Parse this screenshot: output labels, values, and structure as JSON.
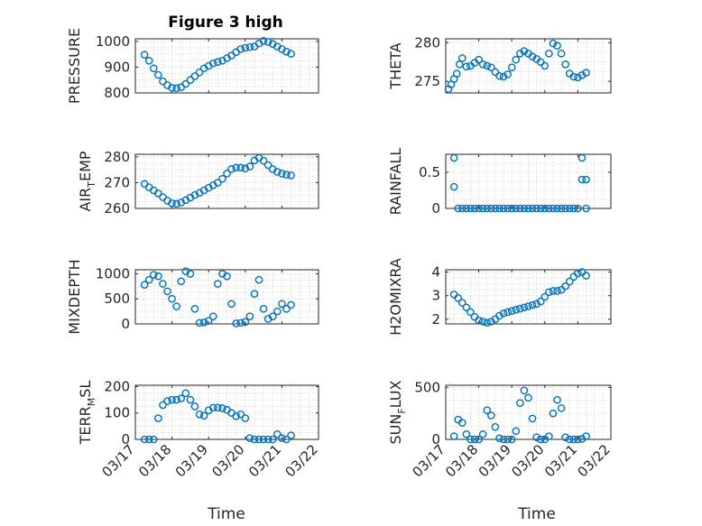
{
  "figure": {
    "xlabel": "Time",
    "x_tick_labels": [
      "03/17",
      "03/18",
      "03/19",
      "03/20",
      "03/21",
      "03/22"
    ],
    "marker_color": "#0072BD"
  },
  "chart_data": [
    {
      "id": "pressure",
      "type": "scatter",
      "title": "Figure 3 high",
      "ylabel": "PRESSURE",
      "ylim": [
        800,
        1010
      ],
      "yticks": [
        800,
        900,
        1000
      ],
      "xlim": [
        "03/17",
        "03/22"
      ],
      "grid": true,
      "x": [
        "03/17 06:00",
        "03/17 09:00",
        "03/17 12:00",
        "03/17 15:00",
        "03/17 18:00",
        "03/17 21:00",
        "03/18 00:00",
        "03/18 03:00",
        "03/18 06:00",
        "03/18 09:00",
        "03/18 12:00",
        "03/18 15:00",
        "03/18 18:00",
        "03/18 21:00",
        "03/19 00:00",
        "03/19 03:00",
        "03/19 06:00",
        "03/19 09:00",
        "03/19 12:00",
        "03/19 15:00",
        "03/19 18:00",
        "03/19 21:00",
        "03/20 00:00",
        "03/20 03:00",
        "03/20 06:00",
        "03/20 09:00",
        "03/20 12:00",
        "03/20 15:00",
        "03/20 18:00",
        "03/20 21:00",
        "03/21 00:00",
        "03/21 03:00",
        "03/21 06:00"
      ],
      "y": [
        948,
        925,
        895,
        870,
        845,
        830,
        820,
        818,
        822,
        835,
        850,
        865,
        880,
        895,
        905,
        915,
        920,
        925,
        935,
        945,
        958,
        970,
        975,
        978,
        980,
        992,
        1002,
        998,
        990,
        980,
        970,
        960,
        952
      ]
    },
    {
      "id": "theta",
      "type": "scatter",
      "ylabel": "THETA",
      "ylim": [
        273.5,
        280.5
      ],
      "yticks": [
        275,
        280
      ],
      "xlim": [
        "03/17",
        "03/22"
      ],
      "grid": true,
      "x": [
        "03/17 02:00",
        "03/17 04:00",
        "03/17 06:00",
        "03/17 08:00",
        "03/17 10:00",
        "03/17 12:00",
        "03/17 15:00",
        "03/17 18:00",
        "03/17 21:00",
        "03/18 00:00",
        "03/18 03:00",
        "03/18 06:00",
        "03/18 09:00",
        "03/18 12:00",
        "03/18 15:00",
        "03/18 18:00",
        "03/18 21:00",
        "03/19 00:00",
        "03/19 03:00",
        "03/19 06:00",
        "03/19 09:00",
        "03/19 12:00",
        "03/19 15:00",
        "03/19 18:00",
        "03/19 21:00",
        "03/20 00:00",
        "03/20 03:00",
        "03/20 06:00",
        "03/20 09:00",
        "03/20 12:00",
        "03/20 15:00",
        "03/20 18:00",
        "03/20 21:00",
        "03/21 00:00",
        "03/21 03:00",
        "03/21 06:00"
      ],
      "y": [
        274.0,
        274.6,
        275.3,
        276.0,
        277.2,
        278.0,
        276.9,
        277.0,
        277.4,
        277.8,
        277.2,
        277.0,
        276.8,
        276.2,
        275.7,
        275.6,
        275.9,
        276.8,
        277.8,
        278.6,
        278.9,
        278.6,
        278.2,
        277.9,
        277.5,
        277.0,
        278.6,
        279.9,
        279.6,
        278.6,
        277.2,
        276.0,
        275.6,
        275.5,
        275.8,
        276.1
      ]
    },
    {
      "id": "air_temp",
      "type": "scatter",
      "ylabel": "AIR_TEMP",
      "ylim": [
        260,
        281
      ],
      "yticks": [
        260,
        270,
        280
      ],
      "xlim": [
        "03/17",
        "03/22"
      ],
      "grid": true,
      "x": [
        "03/17 06:00",
        "03/17 09:00",
        "03/17 12:00",
        "03/17 15:00",
        "03/17 18:00",
        "03/17 21:00",
        "03/18 00:00",
        "03/18 03:00",
        "03/18 06:00",
        "03/18 09:00",
        "03/18 12:00",
        "03/18 15:00",
        "03/18 18:00",
        "03/18 21:00",
        "03/19 00:00",
        "03/19 03:00",
        "03/19 06:00",
        "03/19 09:00",
        "03/19 12:00",
        "03/19 15:00",
        "03/19 18:00",
        "03/19 21:00",
        "03/20 00:00",
        "03/20 03:00",
        "03/20 06:00",
        "03/20 09:00",
        "03/20 12:00",
        "03/20 15:00",
        "03/20 18:00",
        "03/20 21:00",
        "03/21 00:00",
        "03/21 03:00",
        "03/21 06:00"
      ],
      "y": [
        269.5,
        268.2,
        267.0,
        265.8,
        264.4,
        263.0,
        262.0,
        261.8,
        262.3,
        263.2,
        264.2,
        265.2,
        266.0,
        267.0,
        268.0,
        269.0,
        270.0,
        271.5,
        273.5,
        275.3,
        275.8,
        275.8,
        275.5,
        276.3,
        278.6,
        279.6,
        278.5,
        276.8,
        275.2,
        274.2,
        273.5,
        273.1,
        272.8
      ]
    },
    {
      "id": "rainfall",
      "type": "scatter",
      "ylabel": "RAINFALL",
      "ylim": [
        0,
        0.75
      ],
      "yticks": [
        0,
        0.5
      ],
      "xlim": [
        "03/17",
        "03/22"
      ],
      "grid": true,
      "x": [
        "03/17 06:00",
        "03/17 06:00",
        "03/17 09:00",
        "03/17 12:00",
        "03/17 15:00",
        "03/17 18:00",
        "03/17 21:00",
        "03/18 00:00",
        "03/18 03:00",
        "03/18 06:00",
        "03/18 09:00",
        "03/18 12:00",
        "03/18 15:00",
        "03/18 18:00",
        "03/18 21:00",
        "03/19 00:00",
        "03/19 03:00",
        "03/19 06:00",
        "03/19 09:00",
        "03/19 12:00",
        "03/19 15:00",
        "03/19 18:00",
        "03/19 21:00",
        "03/20 00:00",
        "03/20 03:00",
        "03/20 06:00",
        "03/20 09:00",
        "03/20 12:00",
        "03/20 15:00",
        "03/20 18:00",
        "03/20 21:00",
        "03/21 00:00",
        "03/21 03:00",
        "03/21 03:00",
        "03/21 06:00",
        "03/21 06:00"
      ],
      "y": [
        0.7,
        0.3,
        0,
        0,
        0,
        0,
        0,
        0,
        0,
        0,
        0,
        0,
        0,
        0,
        0,
        0,
        0,
        0,
        0,
        0,
        0,
        0,
        0,
        0,
        0,
        0,
        0,
        0,
        0,
        0,
        0,
        0,
        0.7,
        0.4,
        0.4,
        0
      ]
    },
    {
      "id": "mixdepth",
      "type": "scatter",
      "ylabel": "MIXDEPTH",
      "ylim": [
        0,
        1080
      ],
      "yticks": [
        0,
        500,
        1000
      ],
      "xlim": [
        "03/17",
        "03/22"
      ],
      "grid": true,
      "x": [
        "03/17 06:00",
        "03/17 09:00",
        "03/17 12:00",
        "03/17 15:00",
        "03/17 18:00",
        "03/17 21:00",
        "03/18 00:00",
        "03/18 03:00",
        "03/18 06:00",
        "03/18 09:00",
        "03/18 12:00",
        "03/18 15:00",
        "03/18 18:00",
        "03/18 21:00",
        "03/19 00:00",
        "03/19 03:00",
        "03/19 06:00",
        "03/19 09:00",
        "03/19 12:00",
        "03/19 15:00",
        "03/19 18:00",
        "03/19 21:00",
        "03/20 00:00",
        "03/20 03:00",
        "03/20 06:00",
        "03/20 09:00",
        "03/20 12:00",
        "03/20 15:00",
        "03/20 18:00",
        "03/20 21:00",
        "03/21 00:00",
        "03/21 03:00",
        "03/21 06:00"
      ],
      "y": [
        780,
        880,
        980,
        950,
        800,
        650,
        500,
        350,
        850,
        1050,
        1000,
        300,
        20,
        30,
        60,
        150,
        800,
        1000,
        950,
        400,
        10,
        20,
        40,
        150,
        600,
        880,
        300,
        100,
        150,
        250,
        400,
        300,
        380
      ]
    },
    {
      "id": "h2omixra",
      "type": "scatter",
      "ylabel": "H2OMIXRA",
      "ylim": [
        1.8,
        4.1
      ],
      "yticks": [
        2,
        3,
        4
      ],
      "xlim": [
        "03/17",
        "03/22"
      ],
      "grid": true,
      "x": [
        "03/17 06:00",
        "03/17 09:00",
        "03/17 12:00",
        "03/17 15:00",
        "03/17 18:00",
        "03/17 21:00",
        "03/18 00:00",
        "03/18 03:00",
        "03/18 06:00",
        "03/18 09:00",
        "03/18 12:00",
        "03/18 15:00",
        "03/18 18:00",
        "03/18 21:00",
        "03/19 00:00",
        "03/19 03:00",
        "03/19 06:00",
        "03/19 09:00",
        "03/19 12:00",
        "03/19 15:00",
        "03/19 18:00",
        "03/19 21:00",
        "03/20 00:00",
        "03/20 03:00",
        "03/20 06:00",
        "03/20 09:00",
        "03/20 12:00",
        "03/20 15:00",
        "03/20 18:00",
        "03/20 21:00",
        "03/21 00:00",
        "03/21 03:00",
        "03/21 06:00"
      ],
      "y": [
        3.05,
        2.9,
        2.7,
        2.5,
        2.3,
        2.1,
        1.95,
        1.9,
        1.85,
        1.9,
        2.0,
        2.15,
        2.25,
        2.3,
        2.35,
        2.4,
        2.45,
        2.5,
        2.55,
        2.6,
        2.65,
        2.75,
        2.95,
        3.15,
        3.2,
        3.2,
        3.25,
        3.4,
        3.6,
        3.8,
        3.95,
        4.0,
        3.85
      ]
    },
    {
      "id": "terr_msl",
      "type": "scatter",
      "ylabel": "TERR_MSL",
      "ylim": [
        0,
        205
      ],
      "yticks": [
        0,
        100,
        200
      ],
      "xlim": [
        "03/17",
        "03/22"
      ],
      "grid": true,
      "x": [
        "03/17 06:00",
        "03/17 09:00",
        "03/17 12:00",
        "03/17 15:00",
        "03/17 18:00",
        "03/17 21:00",
        "03/18 00:00",
        "03/18 03:00",
        "03/18 06:00",
        "03/18 09:00",
        "03/18 12:00",
        "03/18 15:00",
        "03/18 18:00",
        "03/18 21:00",
        "03/19 00:00",
        "03/19 03:00",
        "03/19 06:00",
        "03/19 09:00",
        "03/19 12:00",
        "03/19 15:00",
        "03/19 18:00",
        "03/19 21:00",
        "03/20 00:00",
        "03/20 03:00",
        "03/20 06:00",
        "03/20 09:00",
        "03/20 12:00",
        "03/20 15:00",
        "03/20 18:00",
        "03/20 21:00",
        "03/21 00:00",
        "03/21 03:00",
        "03/21 06:00"
      ],
      "y": [
        0,
        0,
        0,
        80,
        130,
        145,
        150,
        150,
        155,
        175,
        150,
        125,
        95,
        90,
        110,
        120,
        120,
        118,
        112,
        100,
        88,
        95,
        80,
        5,
        0,
        0,
        0,
        0,
        0,
        20,
        5,
        0,
        15
      ]
    },
    {
      "id": "sun_flux",
      "type": "scatter",
      "ylabel": "SUN_FLUX",
      "ylim": [
        0,
        520
      ],
      "yticks": [
        0,
        500
      ],
      "xlim": [
        "03/17",
        "03/22"
      ],
      "grid": true,
      "x": [
        "03/17 06:00",
        "03/17 09:00",
        "03/17 12:00",
        "03/17 15:00",
        "03/17 18:00",
        "03/17 21:00",
        "03/18 00:00",
        "03/18 03:00",
        "03/18 06:00",
        "03/18 09:00",
        "03/18 12:00",
        "03/18 15:00",
        "03/18 18:00",
        "03/18 21:00",
        "03/19 00:00",
        "03/19 03:00",
        "03/19 06:00",
        "03/19 09:00",
        "03/19 12:00",
        "03/19 15:00",
        "03/19 18:00",
        "03/19 21:00",
        "03/20 00:00",
        "03/20 03:00",
        "03/20 06:00",
        "03/20 09:00",
        "03/20 12:00",
        "03/20 15:00",
        "03/20 18:00",
        "03/20 21:00",
        "03/21 00:00",
        "03/21 03:00",
        "03/21 06:00"
      ],
      "y": [
        30,
        190,
        160,
        50,
        0,
        0,
        0,
        50,
        280,
        230,
        120,
        10,
        0,
        0,
        0,
        80,
        350,
        470,
        400,
        200,
        20,
        0,
        0,
        30,
        250,
        380,
        300,
        20,
        0,
        0,
        0,
        5,
        30
      ]
    }
  ]
}
